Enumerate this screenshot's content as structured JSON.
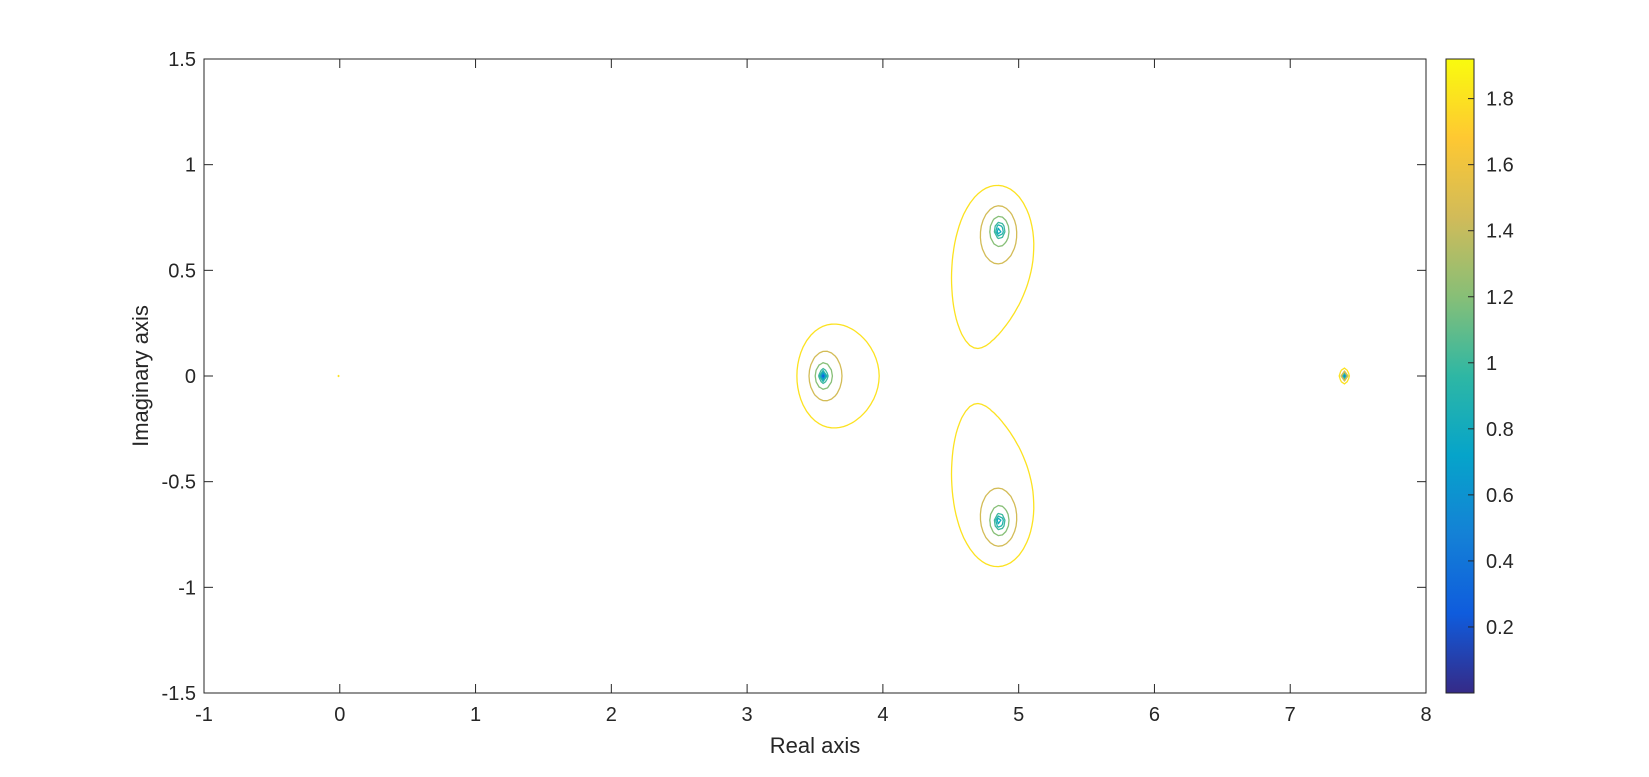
{
  "chart_data": {
    "type": "contour",
    "title": "",
    "xlabel": "Real axis",
    "ylabel": "Imaginary axis",
    "xlim": [
      -1,
      8
    ],
    "ylim": [
      -1.5,
      1.5
    ],
    "xticks": [
      -1,
      0,
      1,
      2,
      3,
      4,
      5,
      6,
      7,
      8
    ],
    "yticks": [
      -1.5,
      -1,
      -0.5,
      0,
      0.5,
      1,
      1.5
    ],
    "grid": false,
    "colormap": "parula",
    "colorbar": {
      "range": [
        0,
        1.92
      ],
      "ticks": [
        0.2,
        0.4,
        0.6,
        0.8,
        1,
        1.2,
        1.4,
        1.6,
        1.8
      ],
      "colors": [
        "#352a87",
        "#0f5cdd",
        "#1481d6",
        "#06a4ca",
        "#2eb7a4",
        "#87bf77",
        "#d1bb59",
        "#fec832",
        "#f9fb0e"
      ]
    },
    "centers": [
      {
        "x": 0,
        "y": 0
      },
      {
        "x": 3.56,
        "y": 0
      },
      {
        "x": 4.86,
        "y": 0.69
      },
      {
        "x": 4.86,
        "y": -0.69
      },
      {
        "x": 7.4,
        "y": 0
      }
    ],
    "contour_levels": [
      0.02,
      0.1,
      0.2,
      0.3,
      0.4,
      0.5,
      0.6,
      0.7,
      0.8,
      0.9,
      1.0,
      1.2,
      1.45,
      1.8
    ]
  }
}
